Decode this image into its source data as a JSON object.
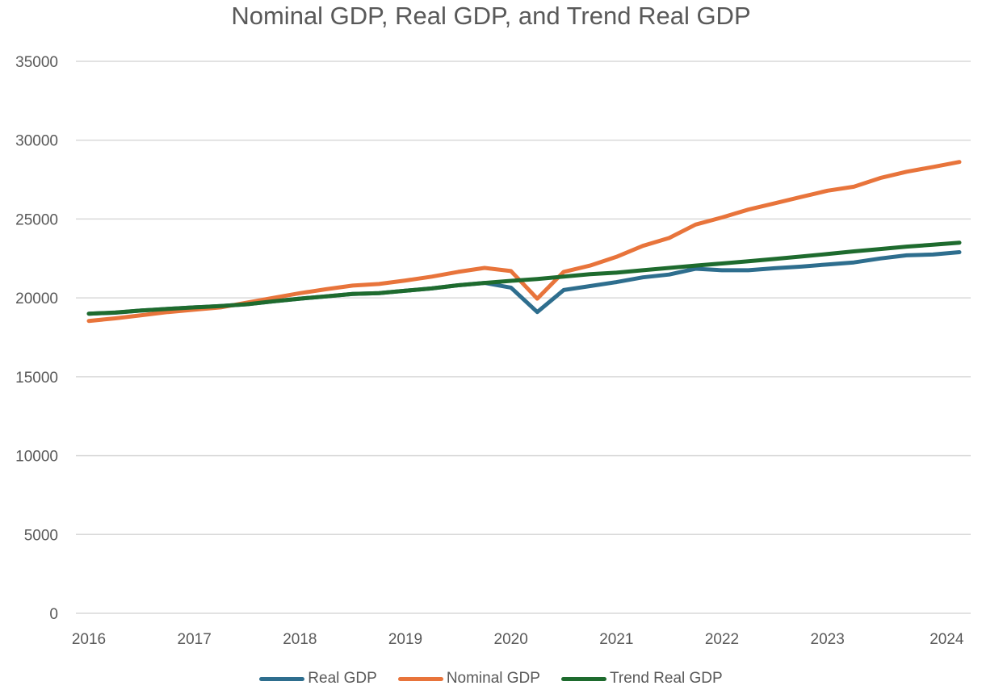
{
  "chart_data": {
    "type": "line",
    "title": "Nominal GDP, Real GDP, and Trend Real GDP",
    "xlabel": "",
    "ylabel": "",
    "ylim": [
      0,
      35000
    ],
    "yticks": [
      "0",
      "5000",
      "10000",
      "15000",
      "20000",
      "25000",
      "30000",
      "35000"
    ],
    "xtick_labels": [
      "2016",
      "2017",
      "2018",
      "2019",
      "2020",
      "2021",
      "2022",
      "2023",
      "2024"
    ],
    "x_start": 2016,
    "x_step": 0.25,
    "grid": true,
    "legend_position": "bottom",
    "series": [
      {
        "name": "Real GDP",
        "color": "#2e6e8e",
        "values": [
          19000,
          19060,
          19200,
          19300,
          19400,
          19480,
          19600,
          19780,
          19950,
          20100,
          20250,
          20300,
          20450,
          20600,
          20800,
          20950,
          20650,
          19100,
          20500,
          20750,
          21000,
          21300,
          21480,
          21850,
          21750,
          21750,
          21880,
          21980,
          22120,
          22250,
          22500,
          22700,
          22750,
          22900
        ]
      },
      {
        "name": "Nominal GDP",
        "color": "#e8743b",
        "values": [
          18540,
          18700,
          18900,
          19100,
          19250,
          19400,
          19700,
          20000,
          20300,
          20550,
          20780,
          20880,
          21100,
          21350,
          21650,
          21900,
          21700,
          19950,
          21650,
          22050,
          22600,
          23300,
          23800,
          24650,
          25100,
          25600,
          26000,
          26400,
          26800,
          27050,
          27600,
          28000,
          28300,
          28620
        ]
      },
      {
        "name": "Trend Real GDP",
        "color": "#1e6b2e",
        "values": [
          19000,
          19070,
          19200,
          19300,
          19400,
          19480,
          19600,
          19780,
          19950,
          20100,
          20250,
          20300,
          20450,
          20600,
          20800,
          20950,
          21080,
          21200,
          21350,
          21500,
          21600,
          21750,
          21900,
          22050,
          22180,
          22320,
          22470,
          22620,
          22780,
          22950,
          23100,
          23250,
          23370,
          23500
        ]
      }
    ]
  }
}
